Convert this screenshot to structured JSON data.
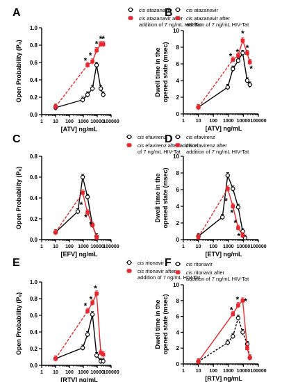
{
  "chart_data": [
    {
      "panel": "A",
      "type": "line",
      "xlabel": "[ATV] ng/mL",
      "ylabel": "Open Probability (Pₒ)",
      "xscale": "log",
      "xlim": [
        1,
        100000
      ],
      "ylim": [
        0,
        1.0
      ],
      "yticks": [
        0.0,
        0.2,
        0.4,
        0.6,
        0.8,
        1.0
      ],
      "ytick_labels": [
        "0.0",
        "0.2",
        "0.4",
        "0.6",
        "0.8",
        "1.0"
      ],
      "xticks": [
        1,
        10,
        100,
        1000,
        10000,
        100000
      ],
      "xtick_labels": [
        "1",
        "10",
        "100",
        "1000",
        "10000",
        "100000"
      ],
      "legend": [
        "cis atazanavir",
        "cis atazanavir after addition of 7 ng/mL  HIV-Tat"
      ],
      "legend_lines": [
        [
          "cis",
          " atazanavir"
        ],
        [
          "cis",
          " atazanavir after"
        ],
        [
          "",
          "addition of 7 ng/mL  HIV-Tat"
        ]
      ],
      "series": [
        {
          "name": "cis atazanavir",
          "style": "open",
          "x": [
            10,
            900,
            2000,
            4500,
            9000,
            18000,
            27000
          ],
          "y": [
            0.08,
            0.17,
            0.23,
            0.3,
            0.57,
            0.3,
            0.23
          ]
        },
        {
          "name": "cis atazanavir after addition of 7 ng/mL  HIV-Tat",
          "style": "filled",
          "x": [
            10,
            2000,
            4500,
            9000,
            18000,
            27000
          ],
          "y": [
            0.09,
            0.57,
            0.61,
            0.74,
            0.81,
            0.81
          ]
        }
      ],
      "asterisks": [
        {
          "x": 1400,
          "y": 0.63
        },
        {
          "x": 3200,
          "y": 0.69
        },
        {
          "x": 9000,
          "y": 0.82
        },
        {
          "x": 18000,
          "y": 0.88
        },
        {
          "x": 27000,
          "y": 0.88
        }
      ]
    },
    {
      "panel": "B",
      "type": "line",
      "xlabel": "[ATV] ng/mL",
      "ylabel": "Dwell time in the opened state (msec)",
      "ylabel_lines": [
        "Dwell time in the",
        "opened state (msec)"
      ],
      "xscale": "log",
      "xlim": [
        1,
        100000
      ],
      "ylim": [
        0,
        10
      ],
      "yticks": [
        0,
        2,
        4,
        6,
        8,
        10
      ],
      "ytick_labels": [
        "0",
        "2",
        "4",
        "6",
        "8",
        "10"
      ],
      "xticks": [
        1,
        10,
        100,
        1000,
        10000,
        100000
      ],
      "xtick_labels": [
        "1",
        "10",
        "100",
        "1000",
        "10000",
        "100000"
      ],
      "legend": [
        "cis atazanavir",
        "cis atazanavir after addition of 7 ng/mL  HIV-Tat"
      ],
      "legend_lines": [
        [
          "cis",
          " atazanavir"
        ],
        [
          "cis",
          " atazanavir after"
        ],
        [
          "",
          "addition of 7 ng/mL  HIV-Tat"
        ]
      ],
      "series": [
        {
          "name": "cis atazanavir",
          "style": "open",
          "x": [
            10,
            900,
            2000,
            4500,
            9000,
            18000,
            27000
          ],
          "y": [
            0.8,
            3.2,
            5.4,
            6.4,
            7.3,
            4.0,
            3.5
          ]
        },
        {
          "name": "cis atazanavir after addition of 7 ng/mL  HIV-Tat",
          "style": "filled",
          "x": [
            10,
            2000,
            4500,
            9000,
            18000,
            27000
          ],
          "y": [
            0.8,
            6.5,
            7.0,
            8.8,
            7.3,
            6.2
          ]
        }
      ],
      "asterisks": [
        {
          "x": 1400,
          "y": 7.0
        },
        {
          "x": 4000,
          "y": 7.5
        },
        {
          "x": 9000,
          "y": 9.7
        },
        {
          "x": 18000,
          "y": 8.0
        },
        {
          "x": 33000,
          "y": 5.5
        }
      ]
    },
    {
      "panel": "C",
      "type": "line",
      "xlabel": "[EFV] ng/mL",
      "ylabel": "Open Probability (Pₒ)",
      "xscale": "log",
      "xlim": [
        1,
        100000
      ],
      "ylim": [
        0,
        0.8
      ],
      "yticks": [
        0.0,
        0.2,
        0.4,
        0.6,
        0.8
      ],
      "ytick_labels": [
        "0.0",
        "0.2",
        "0.4",
        "0.6",
        "0.8"
      ],
      "xticks": [
        1,
        10,
        100,
        1000,
        10000,
        100000
      ],
      "xtick_labels": [
        "1",
        "10",
        "100",
        "1000",
        "10000",
        "100000"
      ],
      "legend": [
        "cis efavirenz",
        "cis efavirenz after addition of 7 ng/mL HIV-Tat"
      ],
      "legend_lines": [
        [
          "cis",
          " efavirenz"
        ],
        [
          "cis",
          " efavirenz after addition"
        ],
        [
          "",
          "of 7 ng/mL HIV-Tat"
        ]
      ],
      "series": [
        {
          "name": "cis efavirenz",
          "style": "open",
          "x": [
            10,
            400,
            900,
            2000,
            4500,
            9000
          ],
          "y": [
            0.07,
            0.27,
            0.6,
            0.41,
            0.14,
            0.03
          ]
        },
        {
          "name": "cis efavirenz after addition of 7 ng/mL HIV-Tat",
          "style": "filled",
          "x": [
            10,
            900,
            2000,
            4500,
            9000
          ],
          "y": [
            0.07,
            0.45,
            0.26,
            0.14,
            0.02
          ]
        }
      ],
      "asterisks": [
        {
          "x": 700,
          "y": 0.34
        },
        {
          "x": 1500,
          "y": 0.22
        },
        {
          "x": 3400,
          "y": 0.15
        }
      ]
    },
    {
      "panel": "D",
      "type": "line",
      "xlabel": "[ETV] ng/mL",
      "ylabel": "Dwell time in the opened state (msec)",
      "ylabel_lines": [
        "Dwell time in the",
        "opened state (msec)"
      ],
      "xscale": "log",
      "xlim": [
        1,
        100000
      ],
      "ylim": [
        0,
        10
      ],
      "yticks": [
        0,
        2,
        4,
        6,
        8,
        10
      ],
      "ytick_labels": [
        "0",
        "2",
        "4",
        "6",
        "8",
        "10"
      ],
      "xticks": [
        1,
        10,
        100,
        1000,
        10000,
        100000
      ],
      "xtick_labels": [
        "1",
        "10",
        "100",
        "1000",
        "10000",
        "100000"
      ],
      "legend": [
        "cis efavirenz",
        "cis efavirenz after addition of 7 ng/mL HIV-Tat"
      ],
      "legend_lines": [
        [
          "cis",
          " efavirenz"
        ],
        [
          "cis",
          " efavirenz after"
        ],
        [
          "",
          "addition of 7 ng/mL HIV-Tat"
        ]
      ],
      "series": [
        {
          "name": "cis efavirenz",
          "style": "open",
          "x": [
            10,
            400,
            900,
            2000,
            4500,
            9000,
            13000
          ],
          "y": [
            0.4,
            2.7,
            7.7,
            6.1,
            3.9,
            1.0,
            0.2
          ]
        },
        {
          "name": "cis efavirenz after addition of 7 ng/mL HIV-Tat",
          "style": "filled",
          "x": [
            10,
            900,
            2000,
            4500,
            9000
          ],
          "y": [
            0.3,
            6.1,
            4.0,
            1.4,
            0.5
          ]
        }
      ],
      "asterisks": [
        {
          "x": 700,
          "y": 4.7
        },
        {
          "x": 1700,
          "y": 3.3
        },
        {
          "x": 2900,
          "y": 2.1
        },
        {
          "x": 5000,
          "y": 0.5
        }
      ]
    },
    {
      "panel": "E",
      "type": "line",
      "xlabel": "[RTV] ng/mL",
      "ylabel": "Open Probability (Pₒ)",
      "xscale": "log",
      "xlim": [
        1,
        100000
      ],
      "ylim": [
        0,
        1.0
      ],
      "yticks": [
        0.0,
        0.2,
        0.4,
        0.6,
        0.8,
        1.0
      ],
      "ytick_labels": [
        "0.0",
        "0.2",
        "0.4",
        "0.6",
        "0.8",
        "1.0"
      ],
      "xticks": [
        1,
        10,
        100,
        1000,
        10000,
        100000
      ],
      "xtick_labels": [
        "1",
        "10",
        "100",
        "1000",
        "10000",
        "100000"
      ],
      "legend": [
        "cis ritonavir",
        "cis ritonavir after addition of 7 ng/mL  HIV-Tat"
      ],
      "legend_lines": [
        [
          "cis",
          " ritonavir"
        ],
        [
          "cis",
          " ritonavir after"
        ],
        [
          "",
          "addition of 7 ng/mL  HIV-Tat"
        ]
      ],
      "series": [
        {
          "name": "cis ritonavir",
          "style": "open",
          "x": [
            10,
            900,
            2000,
            4500,
            9000,
            18000,
            27000
          ],
          "y": [
            0.08,
            0.21,
            0.37,
            0.61,
            0.12,
            0.05,
            0.05
          ]
        },
        {
          "name": "cis ritonavir after addition of 7 ng/mL  HIV-Tat",
          "style": "filled",
          "x": [
            10,
            2000,
            4500,
            9000,
            18000,
            27000
          ],
          "y": [
            0.08,
            0.65,
            0.75,
            0.86,
            0.15,
            0.13
          ]
        }
      ],
      "asterisks": [
        {
          "x": 1400,
          "y": 0.72
        },
        {
          "x": 3500,
          "y": 0.8
        },
        {
          "x": 7500,
          "y": 0.93
        }
      ]
    },
    {
      "panel": "F",
      "type": "line",
      "xlabel": "[RTV] ng/mL",
      "ylabel": "Dwell time in the opened state (msec)",
      "ylabel_lines": [
        "Dwell time in the",
        "opened state (msec)"
      ],
      "xscale": "log",
      "xlim": [
        1,
        100000
      ],
      "ylim": [
        0,
        10
      ],
      "yticks": [
        0,
        2,
        4,
        6,
        8,
        10
      ],
      "ytick_labels": [
        "0",
        "2",
        "4",
        "6",
        "8",
        "10"
      ],
      "xticks": [
        1,
        10,
        100,
        1000,
        10000,
        100000
      ],
      "xtick_labels": [
        "1",
        "10",
        "100",
        "1000",
        "10000",
        "100000"
      ],
      "legend": [
        "cis ritonavir",
        "cis ritonavir after addition of 7 ng/mL  HIV-Tat"
      ],
      "legend_lines": [
        [
          "cis",
          " ritonavir"
        ],
        [
          "cis",
          " ritonavir after"
        ],
        [
          "",
          "addition of 7 ng/mL  HIV-Tat"
        ]
      ],
      "series": [
        {
          "name": "cis ritonavir",
          "style": "open",
          "x": [
            10,
            900,
            2000,
            4500,
            9000,
            18000,
            27000
          ],
          "y": [
            0.3,
            2.7,
            3.5,
            5.8,
            4.0,
            2.5,
            0.8
          ]
        },
        {
          "name": "cis ritonavir after addition of 7 ng/mL  HIV-Tat",
          "style": "filled",
          "x": [
            10,
            2000,
            4500,
            9000,
            18000,
            27000
          ],
          "y": [
            0.3,
            6.3,
            7.4,
            8.0,
            2.0,
            0.8
          ]
        }
      ],
      "asterisks": [
        {
          "x": 1600,
          "y": 6.9
        },
        {
          "x": 4000,
          "y": 8.2
        },
        {
          "x": 14000,
          "y": 8.0
        }
      ]
    }
  ],
  "colors": {
    "control": "#000000",
    "tat": "#e8262c"
  }
}
